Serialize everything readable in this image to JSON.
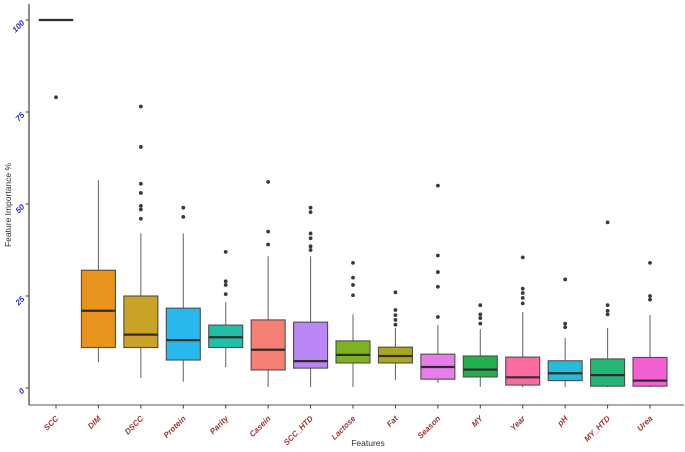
{
  "chart_data": {
    "type": "boxplot",
    "title": "",
    "xlabel": "Features",
    "ylabel": "Feature Importance %",
    "ylim": [
      0,
      100
    ],
    "yticks": [
      0,
      25,
      50,
      75,
      100
    ],
    "grid": false,
    "legend": "none",
    "style": {
      "y_tick_label_color": "#2B2BE0",
      "x_tick_label_color": "#A33434",
      "axis_title_color": "#2E2E2E",
      "x_axis_line_color": "#8F8F8F",
      "y_axis_line_color": "#3F3F3F",
      "box_stroke_color": "#4D4D4D",
      "median_color": "#2E2E2E",
      "whisker_color": "#6E6E6E",
      "outlier_color": "#3A3A3A"
    },
    "categories": [
      "SCC",
      "DIM",
      "DSCC",
      "Protein",
      "Parity",
      "Casein",
      "SCC_HTD",
      "Lactose",
      "Fat",
      "Season",
      "MY",
      "Year",
      "pH",
      "MY_HTD",
      "Urea"
    ],
    "series": [
      {
        "name": "SCC",
        "fill": "#F8766D",
        "whisker_low": 100,
        "q1": 100,
        "median": 100,
        "q3": 100,
        "whisker_high": 100,
        "outliers": [
          79
        ]
      },
      {
        "name": "DIM",
        "fill": "#E8941C",
        "whisker_low": 7,
        "q1": 11,
        "median": 21,
        "q3": 32,
        "whisker_high": 56.5,
        "outliers": []
      },
      {
        "name": "DSCC",
        "fill": "#C9A227",
        "whisker_low": 2.7,
        "q1": 11,
        "median": 14.5,
        "q3": 25,
        "whisker_high": 42,
        "outliers": [
          76.5,
          65.5,
          55.5,
          53,
          49.5,
          48.5,
          46
        ]
      },
      {
        "name": "Protein",
        "fill": "#29B8EC",
        "whisker_low": 1.7,
        "q1": 7.6,
        "median": 13,
        "q3": 21.7,
        "whisker_high": 42,
        "outliers": [
          49,
          46.5
        ]
      },
      {
        "name": "Parity",
        "fill": "#20C0A7",
        "whisker_low": 5.7,
        "q1": 11,
        "median": 13.8,
        "q3": 17.1,
        "whisker_high": 23.3,
        "outliers": [
          37,
          29,
          28,
          25.5
        ]
      },
      {
        "name": "Casein",
        "fill": "#F57F72",
        "whisker_low": 0.3,
        "q1": 4.9,
        "median": 10.4,
        "q3": 18.5,
        "whisker_high": 35.8,
        "outliers": [
          56,
          42.5,
          39
        ]
      },
      {
        "name": "SCC_HTD",
        "fill": "#BA86F5",
        "whisker_low": 0.3,
        "q1": 5.4,
        "median": 7.3,
        "q3": 17.9,
        "whisker_high": 35.8,
        "outliers": [
          49,
          47.8,
          42,
          40.7,
          38.5,
          37.5
        ]
      },
      {
        "name": "Lactose",
        "fill": "#7DB31E",
        "whisker_low": 0.3,
        "q1": 6.8,
        "median": 9,
        "q3": 12.8,
        "whisker_high": 20,
        "outliers": [
          34,
          30,
          28,
          25.2
        ]
      },
      {
        "name": "Fat",
        "fill": "#ABA81F",
        "whisker_low": 2.2,
        "q1": 6.8,
        "median": 8.7,
        "q3": 11.1,
        "whisker_high": 16.3,
        "outliers": [
          26,
          21.2,
          19.8,
          18.5,
          17.2
        ]
      },
      {
        "name": "Season",
        "fill": "#E87CE8",
        "whisker_low": 1.4,
        "q1": 2.4,
        "median": 5.7,
        "q3": 9.2,
        "whisker_high": 17.1,
        "outliers": [
          55,
          36,
          31.5,
          27.5,
          19.3
        ]
      },
      {
        "name": "MY",
        "fill": "#21B14C",
        "whisker_low": 0.3,
        "q1": 3,
        "median": 5,
        "q3": 8.7,
        "whisker_high": 16,
        "outliers": [
          22.5,
          20,
          19,
          17.5
        ]
      },
      {
        "name": "Year",
        "fill": "#FA6BA0",
        "whisker_low": 0.2,
        "q1": 0.8,
        "median": 2.9,
        "q3": 8.4,
        "whisker_high": 20.6,
        "outliers": [
          35.5,
          27,
          25.8,
          24.5,
          23
        ]
      },
      {
        "name": "pH",
        "fill": "#26BCD8",
        "whisker_low": 0.3,
        "q1": 2,
        "median": 4,
        "q3": 7.4,
        "whisker_high": 13.6,
        "outliers": [
          29.5,
          17.5,
          16.5
        ]
      },
      {
        "name": "MY_HTD",
        "fill": "#25B577",
        "whisker_low": 0.2,
        "q1": 0.5,
        "median": 3.5,
        "q3": 7.9,
        "whisker_high": 16.3,
        "outliers": [
          45,
          22.5,
          21,
          20
        ]
      },
      {
        "name": "Urea",
        "fill": "#F45FD1",
        "whisker_low": 0.2,
        "q1": 0.5,
        "median": 2,
        "q3": 8.3,
        "whisker_high": 19.8,
        "outliers": [
          34,
          25,
          24
        ]
      }
    ]
  }
}
